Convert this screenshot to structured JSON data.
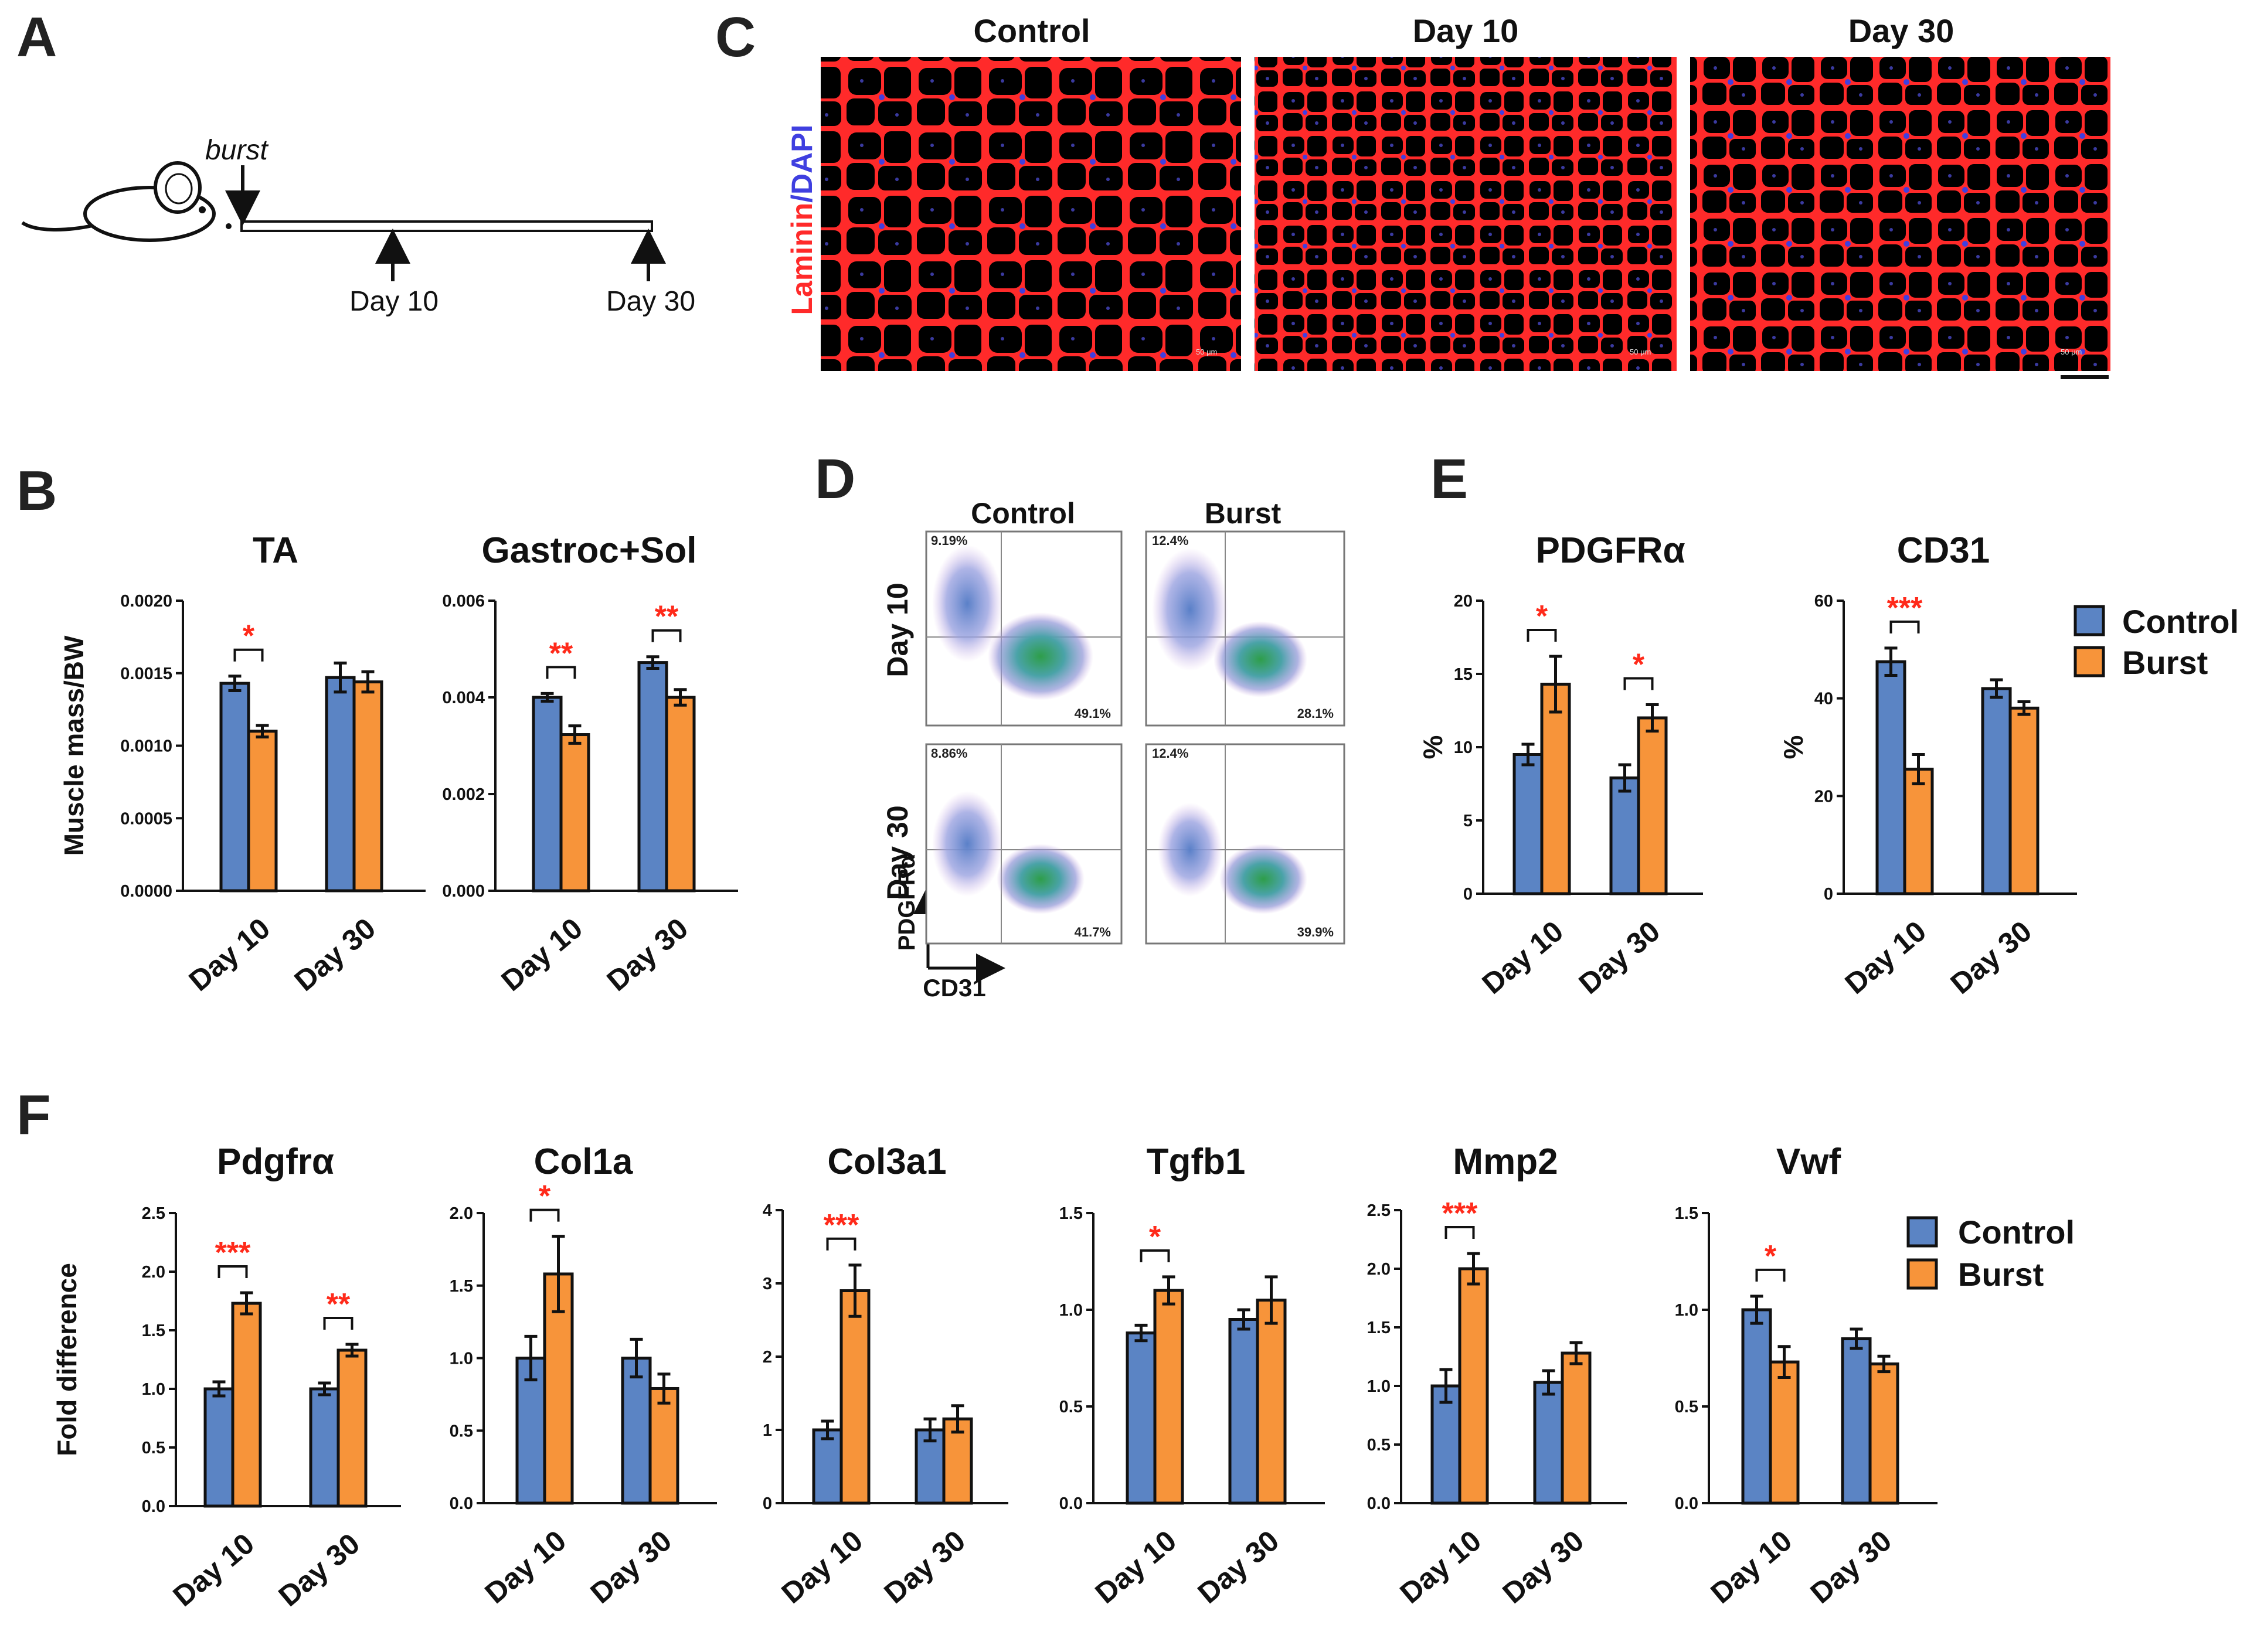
{
  "panel_letters": [
    "A",
    "B",
    "C",
    "D",
    "E",
    "F"
  ],
  "colors": {
    "control": "#5b84c4",
    "burst": "#f7943a",
    "sig": "#ff2a1a",
    "laminin": "#ff2a2a",
    "dapi": "#3f3fe0"
  },
  "panel_a": {
    "event": "burst",
    "timepoints": [
      "Day 10",
      "Day 30"
    ]
  },
  "panel_c": {
    "titles": [
      "Control",
      "Day 10",
      "Day 30"
    ],
    "stain_laminin": "Laminin",
    "stain_sep": "/",
    "stain_dapi": "DAPI",
    "scale_text": "50 μm"
  },
  "panel_d": {
    "col_titles": [
      "Control",
      "Burst"
    ],
    "row_titles": [
      "Day 10",
      "Day 30"
    ],
    "y_axis": "PDGFRα",
    "x_axis": "CD31",
    "percentages": [
      [
        "9.19%",
        "49.1%",
        "12.4%",
        "28.1%"
      ],
      [
        "8.86%",
        "41.7%",
        "12.4%",
        "39.9%"
      ]
    ]
  },
  "legend": {
    "items": [
      "Control",
      "Burst"
    ]
  },
  "chart_data": [
    {
      "id": "ta",
      "type": "bar",
      "title": "TA",
      "ylabel": "Muscle mass/BW",
      "categories": [
        "Day 10",
        "Day 30"
      ],
      "ylim": [
        0,
        0.002
      ],
      "yticks": [
        "0.0000",
        "0.0005",
        "0.0010",
        "0.0015",
        "0.0020"
      ],
      "ytick_values": [
        0,
        0.0005,
        0.001,
        0.0015,
        0.002
      ],
      "series": [
        {
          "name": "Control",
          "values": [
            0.00143,
            0.00147
          ],
          "errors": [
            5e-05,
            0.0001
          ]
        },
        {
          "name": "Burst",
          "values": [
            0.0011,
            0.00144
          ],
          "errors": [
            4e-05,
            7e-05
          ]
        }
      ],
      "significance": [
        {
          "category": "Day 10",
          "label": "*"
        }
      ]
    },
    {
      "id": "gastroc",
      "type": "bar",
      "title": "Gastroc+Sol",
      "ylabel": "",
      "categories": [
        "Day 10",
        "Day 30"
      ],
      "ylim": [
        0,
        0.006
      ],
      "yticks": [
        "0.000",
        "0.002",
        "0.004",
        "0.006"
      ],
      "ytick_values": [
        0,
        0.002,
        0.004,
        0.006
      ],
      "series": [
        {
          "name": "Control",
          "values": [
            0.004,
            0.00472
          ],
          "errors": [
            8e-05,
            0.00012
          ]
        },
        {
          "name": "Burst",
          "values": [
            0.00323,
            0.004
          ],
          "errors": [
            0.00018,
            0.00016
          ]
        }
      ],
      "significance": [
        {
          "category": "Day 10",
          "label": "**"
        },
        {
          "category": "Day 30",
          "label": "**"
        }
      ]
    },
    {
      "id": "pdgfra_pct",
      "type": "bar",
      "title": "PDGFRα",
      "ylabel": "%",
      "categories": [
        "Day 10",
        "Day 30"
      ],
      "ylim": [
        0,
        20
      ],
      "yticks": [
        "0",
        "5",
        "10",
        "15",
        "20"
      ],
      "ytick_values": [
        0,
        5,
        10,
        15,
        20
      ],
      "series": [
        {
          "name": "Control",
          "values": [
            9.5,
            7.9
          ],
          "errors": [
            0.7,
            0.9
          ]
        },
        {
          "name": "Burst",
          "values": [
            14.3,
            12.0
          ],
          "errors": [
            1.9,
            0.9
          ]
        }
      ],
      "significance": [
        {
          "category": "Day 10",
          "label": "*"
        },
        {
          "category": "Day 30",
          "label": "*"
        }
      ]
    },
    {
      "id": "cd31_pct",
      "type": "bar",
      "title": "CD31",
      "ylabel": "%",
      "categories": [
        "Day 10",
        "Day 30"
      ],
      "ylim": [
        0,
        60
      ],
      "yticks": [
        "0",
        "20",
        "40",
        "60"
      ],
      "ytick_values": [
        0,
        20,
        40,
        60
      ],
      "series": [
        {
          "name": "Control",
          "values": [
            47.5,
            42.0
          ],
          "errors": [
            2.8,
            1.8
          ]
        },
        {
          "name": "Burst",
          "values": [
            25.5,
            38.0
          ],
          "errors": [
            3.0,
            1.3
          ]
        }
      ],
      "significance": [
        {
          "category": "Day 10",
          "label": "***"
        }
      ]
    },
    {
      "id": "pdgfra_fold",
      "type": "bar",
      "title": "Pdgfrα",
      "ylabel": "Fold difference",
      "categories": [
        "Day 10",
        "Day 30"
      ],
      "ylim": [
        0,
        2.5
      ],
      "yticks": [
        "0.0",
        "0.5",
        "1.0",
        "1.5",
        "2.0",
        "2.5"
      ],
      "ytick_values": [
        0,
        0.5,
        1,
        1.5,
        2,
        2.5
      ],
      "series": [
        {
          "name": "Control",
          "values": [
            1.0,
            1.0
          ],
          "errors": [
            0.06,
            0.05
          ]
        },
        {
          "name": "Burst",
          "values": [
            1.73,
            1.33
          ],
          "errors": [
            0.09,
            0.05
          ]
        }
      ],
      "significance": [
        {
          "category": "Day 10",
          "label": "***"
        },
        {
          "category": "Day 30",
          "label": "**"
        }
      ]
    },
    {
      "id": "col1a",
      "type": "bar",
      "title": "Col1a",
      "ylabel": "",
      "categories": [
        "Day 10",
        "Day 30"
      ],
      "ylim": [
        0,
        2.0
      ],
      "yticks": [
        "0.0",
        "0.5",
        "1.0",
        "1.5",
        "2.0"
      ],
      "ytick_values": [
        0,
        0.5,
        1,
        1.5,
        2
      ],
      "series": [
        {
          "name": "Control",
          "values": [
            1.0,
            1.0
          ],
          "errors": [
            0.15,
            0.13
          ]
        },
        {
          "name": "Burst",
          "values": [
            1.58,
            0.79
          ],
          "errors": [
            0.26,
            0.1
          ]
        }
      ],
      "significance": [
        {
          "category": "Day 10",
          "label": "*"
        }
      ]
    },
    {
      "id": "col3a1",
      "type": "bar",
      "title": "Col3a1",
      "ylabel": "",
      "categories": [
        "Day 10",
        "Day 30"
      ],
      "ylim": [
        0,
        4
      ],
      "yticks": [
        "0",
        "1",
        "2",
        "3",
        "4"
      ],
      "ytick_values": [
        0,
        1,
        2,
        3,
        4
      ],
      "series": [
        {
          "name": "Control",
          "values": [
            1.0,
            1.0
          ],
          "errors": [
            0.12,
            0.15
          ]
        },
        {
          "name": "Burst",
          "values": [
            2.9,
            1.15
          ],
          "errors": [
            0.35,
            0.18
          ]
        }
      ],
      "significance": [
        {
          "category": "Day 10",
          "label": "***"
        }
      ]
    },
    {
      "id": "tgfb1",
      "type": "bar",
      "title": "Tgfb1",
      "ylabel": "",
      "categories": [
        "Day 10",
        "Day 30"
      ],
      "ylim": [
        0,
        1.5
      ],
      "yticks": [
        "0.0",
        "0.5",
        "1.0",
        "1.5"
      ],
      "ytick_values": [
        0,
        0.5,
        1,
        1.5
      ],
      "series": [
        {
          "name": "Control",
          "values": [
            0.88,
            0.95
          ],
          "errors": [
            0.04,
            0.05
          ]
        },
        {
          "name": "Burst",
          "values": [
            1.1,
            1.05
          ],
          "errors": [
            0.07,
            0.12
          ]
        }
      ],
      "significance": [
        {
          "category": "Day 10",
          "label": "*"
        }
      ]
    },
    {
      "id": "mmp2",
      "type": "bar",
      "title": "Mmp2",
      "ylabel": "",
      "categories": [
        "Day 10",
        "Day 30"
      ],
      "ylim": [
        0,
        2.5
      ],
      "yticks": [
        "0.0",
        "0.5",
        "1.0",
        "1.5",
        "2.0",
        "2.5"
      ],
      "ytick_values": [
        0,
        0.5,
        1,
        1.5,
        2,
        2.5
      ],
      "series": [
        {
          "name": "Control",
          "values": [
            1.0,
            1.03
          ],
          "errors": [
            0.14,
            0.1
          ]
        },
        {
          "name": "Burst",
          "values": [
            2.0,
            1.28
          ],
          "errors": [
            0.13,
            0.09
          ]
        }
      ],
      "significance": [
        {
          "category": "Day 10",
          "label": "***"
        }
      ]
    },
    {
      "id": "vwf",
      "type": "bar",
      "title": "Vwf",
      "ylabel": "",
      "categories": [
        "Day 10",
        "Day 30"
      ],
      "ylim": [
        0,
        1.5
      ],
      "yticks": [
        "0.0",
        "0.5",
        "1.0",
        "1.5"
      ],
      "ytick_values": [
        0,
        0.5,
        1,
        1.5
      ],
      "series": [
        {
          "name": "Control",
          "values": [
            1.0,
            0.85
          ],
          "errors": [
            0.07,
            0.05
          ]
        },
        {
          "name": "Burst",
          "values": [
            0.73,
            0.72
          ],
          "errors": [
            0.08,
            0.04
          ]
        }
      ],
      "significance": [
        {
          "category": "Day 10",
          "label": "*"
        }
      ]
    }
  ]
}
